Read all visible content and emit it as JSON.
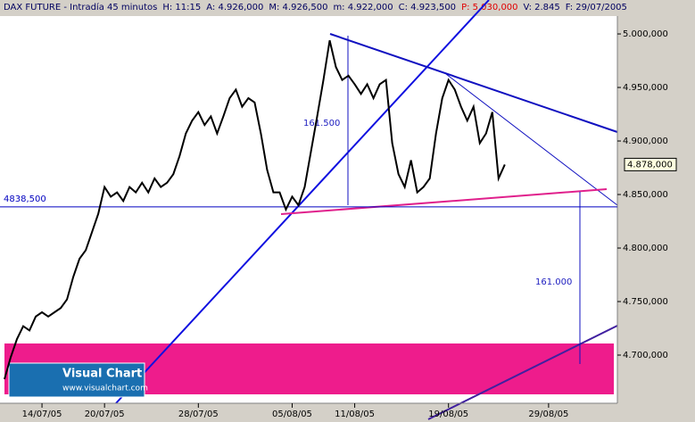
{
  "chart_data": {
    "type": "line",
    "title": "DAX FUTURE - Intradía 45 minutos",
    "header_fields": [
      {
        "text": "H: 11:15",
        "color": "#000060"
      },
      {
        "text": "A: 4.926,000",
        "color": "#000060"
      },
      {
        "text": "M: 4.926,500",
        "color": "#000060"
      },
      {
        "text": "m: 4.922,000",
        "color": "#000060"
      },
      {
        "text": "C: 4.923,500",
        "color": "#000060"
      },
      {
        "text": "P: 5.030,000",
        "color": "#e00000"
      },
      {
        "text": "V: 2.845",
        "color": "#000060"
      },
      {
        "text": "F: 29/07/2005",
        "color": "#000060"
      }
    ],
    "categories": [
      null,
      null,
      null,
      null,
      null,
      null,
      "14/07/05",
      null,
      null,
      null,
      null,
      null,
      null,
      null,
      null,
      null,
      "20/07/05",
      null,
      null,
      null,
      null,
      null,
      null,
      null,
      null,
      null,
      null,
      null,
      null,
      null,
      null,
      "28/07/05",
      null,
      null,
      null,
      null,
      null,
      null,
      null,
      null,
      null,
      null,
      null,
      null,
      null,
      null,
      "05/08/05",
      null,
      null,
      null,
      null,
      null,
      null,
      null,
      null,
      null,
      "11/08/05",
      null,
      null,
      null,
      null,
      null,
      null,
      null,
      null,
      null,
      null,
      null,
      null,
      null,
      null,
      "19/08/05",
      null,
      null,
      null,
      null,
      null,
      null,
      null,
      null,
      null,
      null,
      null,
      null,
      null,
      null,
      null,
      "29/08/05",
      null,
      null,
      null,
      null,
      null,
      null,
      null,
      null,
      null,
      null
    ],
    "series": [
      {
        "name": "DAX FUTURE",
        "color": "#000000",
        "values": [
          4677.5,
          4698,
          4715,
          4727,
          4723,
          4736,
          4740,
          4736,
          4740,
          4744,
          4752,
          4773,
          4790,
          4798,
          4815,
          4832,
          4857,
          4848,
          4852,
          4844,
          4857,
          4852,
          4861,
          4852,
          4865,
          4857,
          4861,
          4869,
          4886,
          4907,
          4919,
          4927,
          4915,
          4923,
          4907,
          4923,
          4940,
          4948,
          4932,
          4940,
          4936,
          4907,
          4873,
          4852,
          4852,
          4836,
          4848,
          4840,
          4857,
          4890,
          4923,
          4957,
          4994,
          4969,
          4957,
          4961,
          4953,
          4944,
          4953,
          4940,
          4953,
          4957,
          4898,
          4869,
          4857,
          4882,
          4852,
          4857,
          4865,
          4907,
          4940,
          4957,
          4948,
          4932,
          4919,
          4932,
          4898,
          4907,
          4927,
          4865,
          4878,
          null,
          null,
          null,
          null,
          null,
          null,
          null,
          null,
          null,
          null,
          null,
          null,
          null,
          null,
          null,
          null,
          null
        ]
      }
    ],
    "ylim": [
      4655,
      5016.7
    ],
    "yticks": [
      {
        "value": 4700,
        "label": "4.700,000"
      },
      {
        "value": 4750,
        "label": "4.750,000"
      },
      {
        "value": 4800,
        "label": "4.800,000"
      },
      {
        "value": 4850,
        "label": "4.850,000"
      },
      {
        "value": 4900,
        "label": "4.900,000"
      },
      {
        "value": 4950,
        "label": "4.950,000"
      },
      {
        "value": 5000,
        "label": "5.000,000"
      }
    ],
    "reference_line": {
      "value": 4838.5,
      "label": "4838,500",
      "color": "#0000c0"
    },
    "last_price": {
      "value": 4878,
      "label": "4.878,000"
    },
    "annotations": [
      "161.500",
      "161.000"
    ],
    "watermark": {
      "title": "Visual Chart",
      "url": "www.visualchart.com"
    }
  }
}
